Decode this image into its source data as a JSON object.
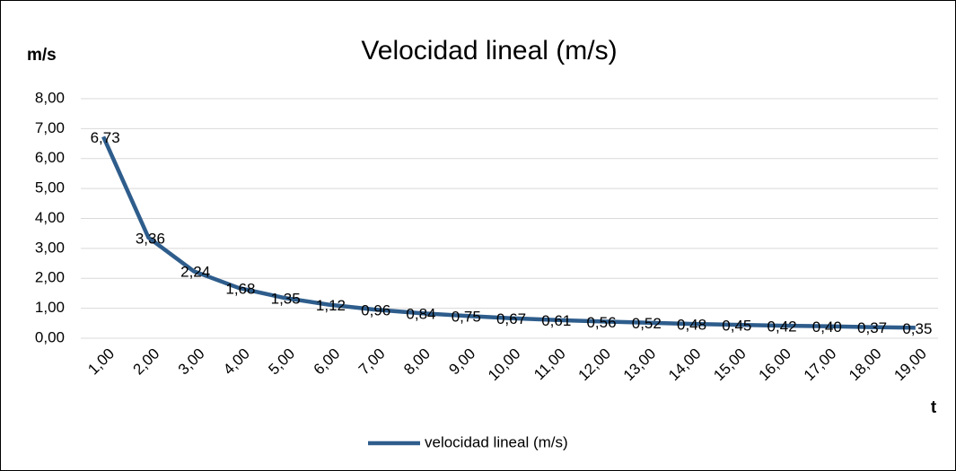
{
  "chart_data": {
    "type": "line",
    "title": "Velocidad lineal (m/s)",
    "y_label": "m/s",
    "x_label": "t",
    "categories": [
      "1,00",
      "2,00",
      "3,00",
      "4,00",
      "5,00",
      "6,00",
      "7,00",
      "8,00",
      "9,00",
      "10,00",
      "11,00",
      "12,00",
      "13,00",
      "14,00",
      "15,00",
      "16,00",
      "17,00",
      "18,00",
      "19,00"
    ],
    "series": [
      {
        "name": "velocidad lineal (m/s)",
        "color": "#2e5d8c",
        "values": [
          6.73,
          3.36,
          2.24,
          1.68,
          1.35,
          1.12,
          0.96,
          0.84,
          0.75,
          0.67,
          0.61,
          0.56,
          0.52,
          0.48,
          0.45,
          0.42,
          0.4,
          0.37,
          0.35
        ],
        "value_labels": [
          "6,73",
          "3,36",
          "2,24",
          "1,68",
          "1,35",
          "1,12",
          "0,96",
          "0,84",
          "0,75",
          "0,67",
          "0,61",
          "0,56",
          "0,52",
          "0,48",
          "0,45",
          "0,42",
          "0,40",
          "0,37",
          "0,35"
        ]
      }
    ],
    "ylim": [
      0,
      8
    ],
    "yticks": [
      {
        "value": 0,
        "label": "0,00"
      },
      {
        "value": 1,
        "label": "1,00"
      },
      {
        "value": 2,
        "label": "2,00"
      },
      {
        "value": 3,
        "label": "3,00"
      },
      {
        "value": 4,
        "label": "4,00"
      },
      {
        "value": 5,
        "label": "5,00"
      },
      {
        "value": 6,
        "label": "6,00"
      },
      {
        "value": 7,
        "label": "7,00"
      },
      {
        "value": 8,
        "label": "8,00"
      }
    ],
    "grid": true,
    "legend": "bottom"
  }
}
